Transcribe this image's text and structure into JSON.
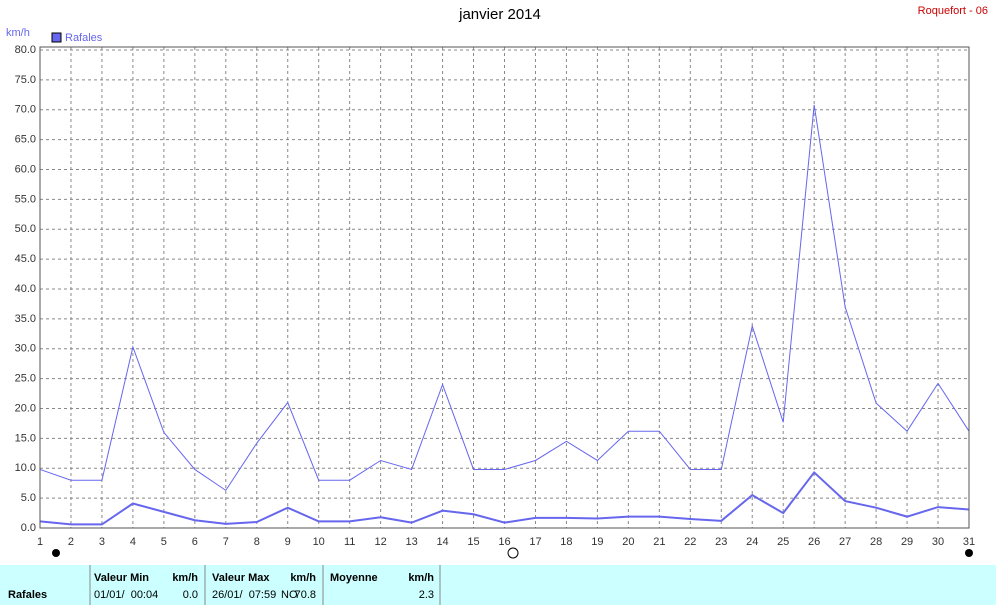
{
  "chart_data": {
    "type": "line",
    "title": "janvier 2014",
    "station": "Roquefort - 06",
    "y_label": "km/h",
    "x": [
      1,
      2,
      3,
      4,
      5,
      6,
      7,
      8,
      9,
      10,
      11,
      12,
      13,
      14,
      15,
      16,
      17,
      18,
      19,
      20,
      21,
      22,
      23,
      24,
      25,
      26,
      27,
      28,
      29,
      30,
      31
    ],
    "series": [
      {
        "name": "Rafales",
        "color": "#6666ee",
        "values": [
          9.8,
          8.0,
          8.0,
          30.3,
          16.0,
          9.8,
          6.3,
          14.2,
          21.0,
          8.0,
          8.0,
          11.3,
          9.8,
          24.0,
          9.8,
          9.8,
          11.3,
          14.5,
          11.3,
          16.2,
          16.2,
          9.8,
          9.8,
          33.8,
          17.7,
          70.8,
          37.0,
          20.9,
          16.2,
          24.2,
          16.2
        ]
      },
      {
        "color": "#6666ee",
        "values": [
          1.1,
          0.6,
          0.6,
          4.1,
          2.7,
          1.3,
          0.7,
          1.0,
          3.4,
          1.1,
          1.1,
          1.8,
          0.9,
          2.9,
          2.3,
          0.9,
          1.7,
          1.7,
          1.6,
          1.9,
          1.9,
          1.5,
          1.2,
          5.5,
          2.5,
          9.3,
          4.5,
          3.4,
          1.9,
          3.5,
          3.1
        ]
      }
    ],
    "xlim": [
      1,
      31
    ],
    "xticks": [
      1,
      2,
      3,
      4,
      5,
      6,
      7,
      8,
      9,
      10,
      11,
      12,
      13,
      14,
      15,
      16,
      17,
      18,
      19,
      20,
      21,
      22,
      23,
      24,
      25,
      26,
      27,
      28,
      29,
      30,
      31
    ],
    "ylim": [
      0,
      80
    ],
    "yticks": [
      {
        "value": 0,
        "label": "0.0"
      },
      {
        "value": 5,
        "label": "5.0"
      },
      {
        "value": 10,
        "label": "10.0"
      },
      {
        "value": 15,
        "label": "15.0"
      },
      {
        "value": 20,
        "label": "20.0"
      },
      {
        "value": 25,
        "label": "25.0"
      },
      {
        "value": 30,
        "label": "30.0"
      },
      {
        "value": 35,
        "label": "35.0"
      },
      {
        "value": 40,
        "label": "40.0"
      },
      {
        "value": 45,
        "label": "45.0"
      },
      {
        "value": 50,
        "label": "50.0"
      },
      {
        "value": 55,
        "label": "55.0"
      },
      {
        "value": 60,
        "label": "60.0"
      },
      {
        "value": 65,
        "label": "65.0"
      },
      {
        "value": 70,
        "label": "70.0"
      },
      {
        "value": 75,
        "label": "75.0"
      },
      {
        "value": 80,
        "label": "80.0"
      }
    ],
    "grid": true
  },
  "summary": {
    "headers": [
      "Valeur Min",
      "km/h",
      "Valeur Max",
      "km/h",
      "Moyenne",
      "km/h"
    ],
    "row": {
      "label": "Rafales",
      "min_date": "01/01/  00:04",
      "min": "0.0",
      "max_date": "26/01/  07:59",
      "max_dir": "NO",
      "max": "70.8",
      "mean": "2.3"
    }
  }
}
